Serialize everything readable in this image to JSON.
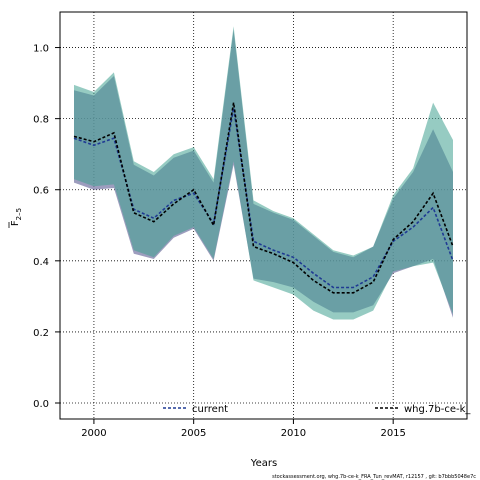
{
  "chart_data": {
    "type": "area",
    "xlabel": "Years",
    "ylabel_main": "F",
    "ylabel_sub": "2–5",
    "xlim": [
      1998.3,
      2018.7
    ],
    "ylim": [
      -0.045,
      1.1
    ],
    "xticks": [
      2000,
      2005,
      2010,
      2015
    ],
    "yticks": [
      0.0,
      0.2,
      0.4,
      0.6,
      0.8,
      1.0
    ],
    "ytick_labels": [
      "0.0",
      "0.2",
      "0.4",
      "0.6",
      "0.8",
      "1.0"
    ],
    "grid": true,
    "legend_position": "bottom",
    "x": [
      1999,
      2000,
      2001,
      2002,
      2003,
      2004,
      2005,
      2006,
      2007,
      2008,
      2009,
      2010,
      2011,
      2012,
      2013,
      2014,
      2015,
      2016,
      2017,
      2018
    ],
    "series": [
      {
        "name": "current",
        "color": "#1f3a93",
        "band_color": "#7c7ca8",
        "values": [
          0.745,
          0.725,
          0.745,
          0.545,
          0.52,
          0.57,
          0.59,
          0.505,
          0.83,
          0.455,
          0.43,
          0.41,
          0.365,
          0.325,
          0.325,
          0.355,
          0.455,
          0.495,
          0.55,
          0.4
        ],
        "lower": [
          0.62,
          0.6,
          0.605,
          0.42,
          0.405,
          0.465,
          0.49,
          0.4,
          0.67,
          0.35,
          0.34,
          0.325,
          0.285,
          0.255,
          0.255,
          0.275,
          0.365,
          0.385,
          0.405,
          0.24
        ],
        "upper": [
          0.88,
          0.865,
          0.92,
          0.67,
          0.64,
          0.69,
          0.71,
          0.62,
          1.05,
          0.56,
          0.535,
          0.515,
          0.47,
          0.425,
          0.41,
          0.44,
          0.575,
          0.65,
          0.77,
          0.65
        ]
      },
      {
        "name": "whg.7b-ce-k_",
        "color": "#000000",
        "band_color": "#3fa090",
        "values": [
          0.75,
          0.735,
          0.76,
          0.535,
          0.51,
          0.56,
          0.6,
          0.5,
          0.845,
          0.44,
          0.42,
          0.395,
          0.345,
          0.31,
          0.31,
          0.34,
          0.46,
          0.51,
          0.59,
          0.44
        ],
        "lower": [
          0.63,
          0.61,
          0.615,
          0.43,
          0.41,
          0.47,
          0.495,
          0.405,
          0.68,
          0.345,
          0.325,
          0.305,
          0.26,
          0.235,
          0.235,
          0.26,
          0.37,
          0.385,
          0.395,
          0.25
        ],
        "upper": [
          0.895,
          0.875,
          0.93,
          0.68,
          0.65,
          0.7,
          0.72,
          0.63,
          1.06,
          0.57,
          0.54,
          0.52,
          0.475,
          0.43,
          0.415,
          0.44,
          0.585,
          0.66,
          0.845,
          0.74
        ]
      }
    ]
  },
  "footnote": "stockassessment.org, whg.7b-ce-k_FRA_Tun_revMAT, r12157 , git: b7bbb5048e7c"
}
